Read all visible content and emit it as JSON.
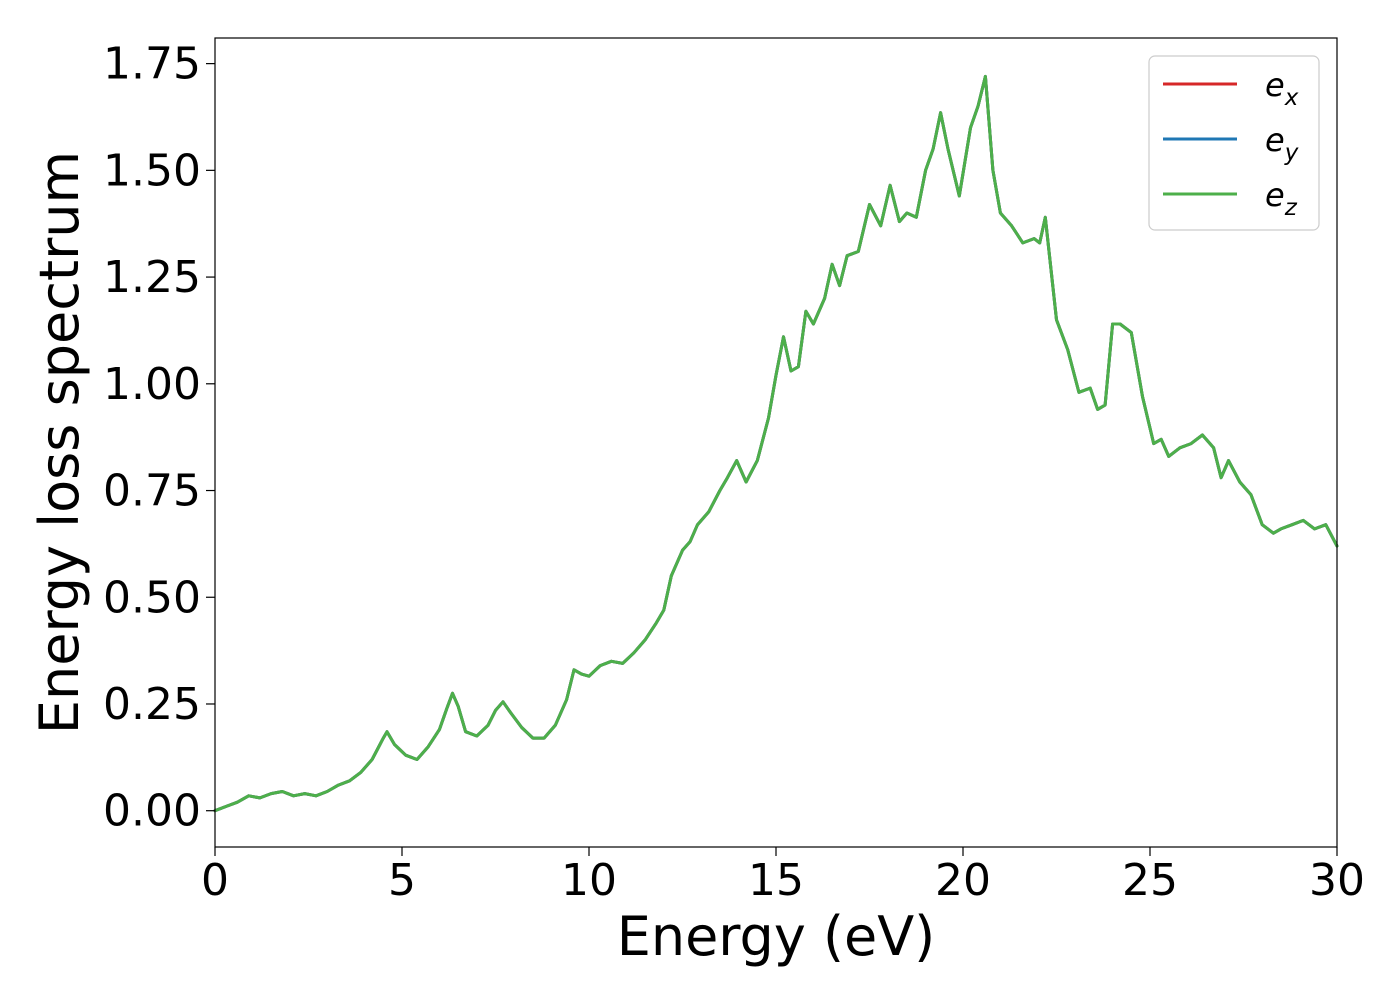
{
  "chart_data": {
    "type": "line",
    "xlabel": "Energy (eV)",
    "ylabel": "Energy loss spectrum",
    "xlim": [
      0,
      30
    ],
    "ylim": [
      -0.085,
      1.81
    ],
    "xticks": [
      0,
      5,
      10,
      15,
      20,
      25,
      30
    ],
    "xtick_labels": [
      "0",
      "5",
      "10",
      "15",
      "20",
      "25",
      "30"
    ],
    "yticks": [
      0.0,
      0.25,
      0.5,
      0.75,
      1.0,
      1.25,
      1.5,
      1.75
    ],
    "ytick_labels": [
      "0.00",
      "0.25",
      "0.50",
      "0.75",
      "1.00",
      "1.25",
      "1.50",
      "1.75"
    ],
    "grid": false,
    "legend_position": "top-right",
    "x": [
      0,
      0.3,
      0.6,
      0.9,
      1.2,
      1.5,
      1.8,
      2.1,
      2.4,
      2.7,
      3.0,
      3.3,
      3.6,
      3.9,
      4.2,
      4.5,
      4.6,
      4.8,
      5.1,
      5.4,
      5.7,
      6.0,
      6.2,
      6.35,
      6.5,
      6.7,
      7.0,
      7.3,
      7.5,
      7.7,
      7.9,
      8.2,
      8.5,
      8.8,
      9.1,
      9.4,
      9.6,
      9.8,
      10.0,
      10.3,
      10.6,
      10.9,
      11.2,
      11.5,
      11.8,
      12.0,
      12.2,
      12.5,
      12.7,
      12.9,
      13.2,
      13.5,
      13.7,
      13.95,
      14.2,
      14.5,
      14.8,
      15.0,
      15.2,
      15.4,
      15.6,
      15.8,
      16.0,
      16.3,
      16.5,
      16.7,
      16.9,
      17.2,
      17.5,
      17.8,
      18.05,
      18.3,
      18.5,
      18.75,
      19.0,
      19.2,
      19.4,
      19.6,
      19.9,
      20.2,
      20.4,
      20.6,
      20.8,
      21.0,
      21.3,
      21.6,
      21.9,
      22.05,
      22.2,
      22.5,
      22.8,
      23.1,
      23.4,
      23.6,
      23.8,
      24.0,
      24.2,
      24.5,
      24.8,
      25.1,
      25.3,
      25.5,
      25.8,
      26.1,
      26.4,
      26.7,
      26.9,
      27.1,
      27.4,
      27.7,
      28.0,
      28.3,
      28.5,
      28.8,
      29.1,
      29.4,
      29.7,
      30.0
    ],
    "series": [
      {
        "name": "e_x",
        "color": "#d62728",
        "values": [
          0.0,
          0.01,
          0.02,
          0.035,
          0.03,
          0.04,
          0.045,
          0.035,
          0.04,
          0.035,
          0.045,
          0.06,
          0.07,
          0.09,
          0.12,
          0.17,
          0.185,
          0.155,
          0.13,
          0.12,
          0.15,
          0.19,
          0.24,
          0.275,
          0.245,
          0.185,
          0.175,
          0.2,
          0.235,
          0.255,
          0.23,
          0.195,
          0.17,
          0.17,
          0.2,
          0.26,
          0.33,
          0.32,
          0.315,
          0.34,
          0.35,
          0.345,
          0.37,
          0.4,
          0.44,
          0.47,
          0.55,
          0.61,
          0.63,
          0.67,
          0.7,
          0.75,
          0.78,
          0.82,
          0.77,
          0.82,
          0.92,
          1.02,
          1.11,
          1.03,
          1.04,
          1.17,
          1.14,
          1.2,
          1.28,
          1.23,
          1.3,
          1.31,
          1.42,
          1.37,
          1.465,
          1.38,
          1.4,
          1.39,
          1.5,
          1.55,
          1.635,
          1.55,
          1.44,
          1.6,
          1.65,
          1.72,
          1.5,
          1.4,
          1.37,
          1.33,
          1.34,
          1.33,
          1.39,
          1.15,
          1.08,
          0.98,
          0.99,
          0.94,
          0.95,
          1.14,
          1.14,
          1.12,
          0.97,
          0.86,
          0.87,
          0.83,
          0.85,
          0.86,
          0.88,
          0.85,
          0.78,
          0.82,
          0.77,
          0.74,
          0.67,
          0.65,
          0.66,
          0.67,
          0.68,
          0.66,
          0.67,
          0.62
        ]
      },
      {
        "name": "e_y",
        "color": "#1f77b4",
        "values": [
          0.0,
          0.01,
          0.02,
          0.035,
          0.03,
          0.04,
          0.045,
          0.035,
          0.04,
          0.035,
          0.045,
          0.06,
          0.07,
          0.09,
          0.12,
          0.17,
          0.185,
          0.155,
          0.13,
          0.12,
          0.15,
          0.19,
          0.24,
          0.275,
          0.245,
          0.185,
          0.175,
          0.2,
          0.235,
          0.255,
          0.23,
          0.195,
          0.17,
          0.17,
          0.2,
          0.26,
          0.33,
          0.32,
          0.315,
          0.34,
          0.35,
          0.345,
          0.37,
          0.4,
          0.44,
          0.47,
          0.55,
          0.61,
          0.63,
          0.67,
          0.7,
          0.75,
          0.78,
          0.82,
          0.77,
          0.82,
          0.92,
          1.02,
          1.11,
          1.03,
          1.04,
          1.17,
          1.14,
          1.2,
          1.28,
          1.23,
          1.3,
          1.31,
          1.42,
          1.37,
          1.465,
          1.38,
          1.4,
          1.39,
          1.5,
          1.55,
          1.635,
          1.55,
          1.44,
          1.6,
          1.65,
          1.72,
          1.5,
          1.4,
          1.37,
          1.33,
          1.34,
          1.33,
          1.39,
          1.15,
          1.08,
          0.98,
          0.99,
          0.94,
          0.95,
          1.14,
          1.14,
          1.12,
          0.97,
          0.86,
          0.87,
          0.83,
          0.85,
          0.86,
          0.88,
          0.85,
          0.78,
          0.82,
          0.77,
          0.74,
          0.67,
          0.65,
          0.66,
          0.67,
          0.68,
          0.66,
          0.67,
          0.62
        ]
      },
      {
        "name": "e_z",
        "color": "#4daf4a",
        "values": [
          0.0,
          0.01,
          0.02,
          0.035,
          0.03,
          0.04,
          0.045,
          0.035,
          0.04,
          0.035,
          0.045,
          0.06,
          0.07,
          0.09,
          0.12,
          0.17,
          0.185,
          0.155,
          0.13,
          0.12,
          0.15,
          0.19,
          0.24,
          0.275,
          0.245,
          0.185,
          0.175,
          0.2,
          0.235,
          0.255,
          0.23,
          0.195,
          0.17,
          0.17,
          0.2,
          0.26,
          0.33,
          0.32,
          0.315,
          0.34,
          0.35,
          0.345,
          0.37,
          0.4,
          0.44,
          0.47,
          0.55,
          0.61,
          0.63,
          0.67,
          0.7,
          0.75,
          0.78,
          0.82,
          0.77,
          0.82,
          0.92,
          1.02,
          1.11,
          1.03,
          1.04,
          1.17,
          1.14,
          1.2,
          1.28,
          1.23,
          1.3,
          1.31,
          1.42,
          1.37,
          1.465,
          1.38,
          1.4,
          1.39,
          1.5,
          1.55,
          1.635,
          1.55,
          1.44,
          1.6,
          1.65,
          1.72,
          1.5,
          1.4,
          1.37,
          1.33,
          1.34,
          1.33,
          1.39,
          1.15,
          1.08,
          0.98,
          0.99,
          0.94,
          0.95,
          1.14,
          1.14,
          1.12,
          0.97,
          0.86,
          0.87,
          0.83,
          0.85,
          0.86,
          0.88,
          0.85,
          0.78,
          0.82,
          0.77,
          0.74,
          0.67,
          0.65,
          0.66,
          0.67,
          0.68,
          0.66,
          0.67,
          0.62
        ]
      }
    ],
    "legend": [
      {
        "base": "e",
        "sub": "x",
        "color": "#d62728"
      },
      {
        "base": "e",
        "sub": "y",
        "color": "#1f77b4"
      },
      {
        "base": "e",
        "sub": "z",
        "color": "#4daf4a"
      }
    ]
  }
}
